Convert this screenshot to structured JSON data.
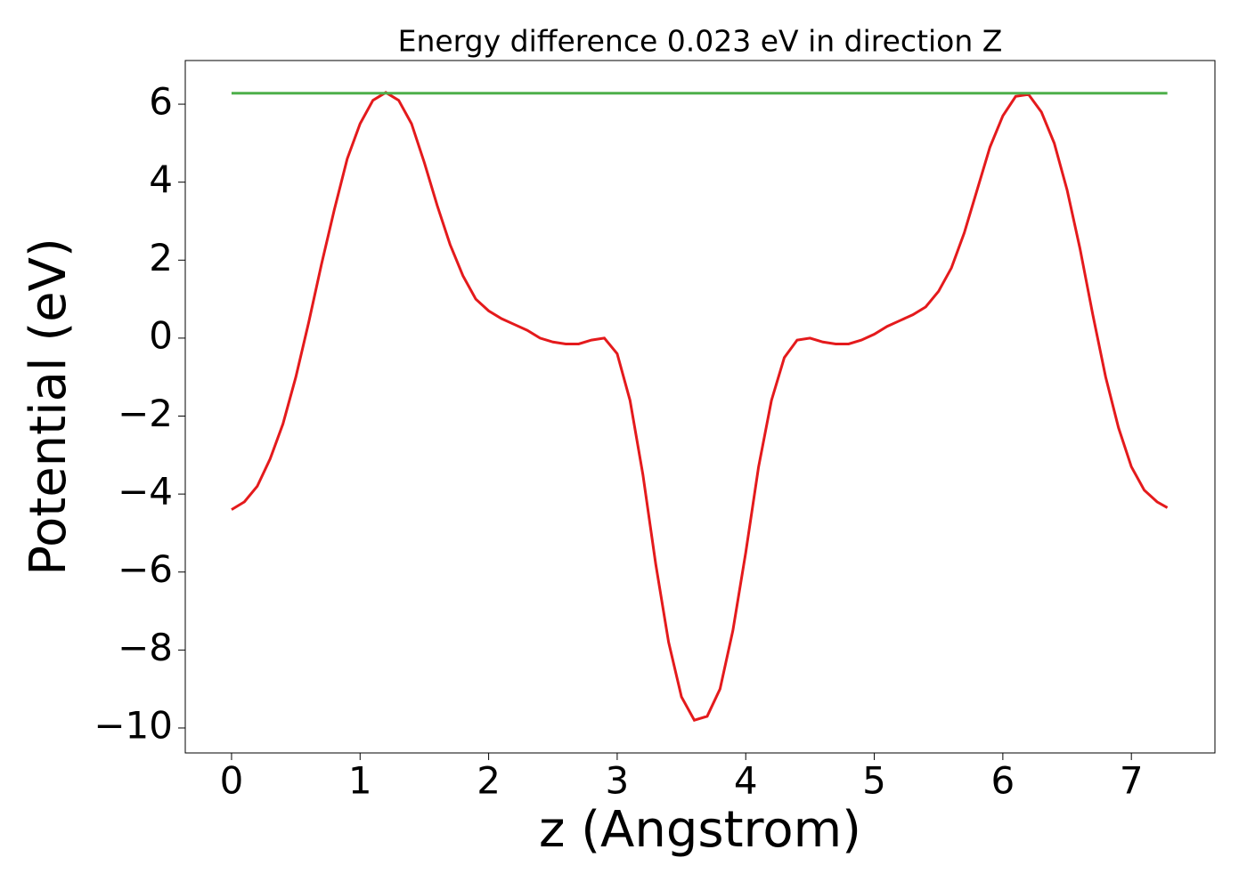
{
  "chart_data": {
    "type": "line",
    "title": "Energy difference 0.023 eV in direction Z",
    "xlabel": "z (Angstrom)",
    "ylabel": "Potential (eV)",
    "x": [
      0,
      0.1,
      0.2,
      0.3,
      0.4,
      0.5,
      0.6,
      0.7,
      0.8,
      0.9,
      1.0,
      1.1,
      1.2,
      1.3,
      1.4,
      1.5,
      1.6,
      1.7,
      1.8,
      1.9,
      2.0,
      2.1,
      2.2,
      2.3,
      2.4,
      2.5,
      2.6,
      2.7,
      2.8,
      2.9,
      3.0,
      3.1,
      3.2,
      3.3,
      3.4,
      3.5,
      3.6,
      3.7,
      3.8,
      3.9,
      4.0,
      4.1,
      4.2,
      4.3,
      4.4,
      4.5,
      4.6,
      4.7,
      4.8,
      4.9,
      5.0,
      5.1,
      5.2,
      5.3,
      5.4,
      5.5,
      5.6,
      5.7,
      5.8,
      5.9,
      6.0,
      6.1,
      6.2,
      6.3,
      6.4,
      6.5,
      6.6,
      6.7,
      6.8,
      6.9,
      7.0,
      7.1,
      7.2,
      7.28
    ],
    "series": [
      {
        "color": "#e41a1c",
        "values": [
          -4.4,
          -4.2,
          -3.8,
          -3.1,
          -2.2,
          -1.0,
          0.4,
          1.9,
          3.3,
          4.6,
          5.5,
          6.1,
          6.3,
          6.1,
          5.5,
          4.5,
          3.4,
          2.4,
          1.6,
          1.0,
          0.7,
          0.5,
          0.35,
          0.2,
          0.0,
          -0.1,
          -0.15,
          -0.15,
          -0.05,
          0.0,
          -0.4,
          -1.6,
          -3.5,
          -5.8,
          -7.8,
          -9.2,
          -9.8,
          -9.7,
          -9.0,
          -7.5,
          -5.5,
          -3.3,
          -1.6,
          -0.5,
          -0.05,
          0.0,
          -0.1,
          -0.15,
          -0.15,
          -0.05,
          0.1,
          0.3,
          0.45,
          0.6,
          0.8,
          1.2,
          1.8,
          2.7,
          3.8,
          4.9,
          5.7,
          6.2,
          6.25,
          5.8,
          5.0,
          3.8,
          2.3,
          0.6,
          -1.0,
          -2.3,
          -3.3,
          -3.9,
          -4.2,
          -4.35
        ]
      },
      {
        "color": "#4daf4a",
        "x": [
          0,
          7.28
        ],
        "values": [
          6.28,
          6.28
        ]
      }
    ],
    "xlim": [
      -0.36,
      7.65
    ],
    "ylim": [
      -10.64,
      7.12
    ],
    "xticks": [
      0,
      1,
      2,
      3,
      4,
      5,
      6,
      7
    ],
    "yticks": [
      {
        "value": -10,
        "label": "−10"
      },
      {
        "value": -8,
        "label": "−8"
      },
      {
        "value": -6,
        "label": "−6"
      },
      {
        "value": -4,
        "label": "−4"
      },
      {
        "value": -2,
        "label": "−2"
      },
      0,
      2,
      4,
      6
    ]
  }
}
